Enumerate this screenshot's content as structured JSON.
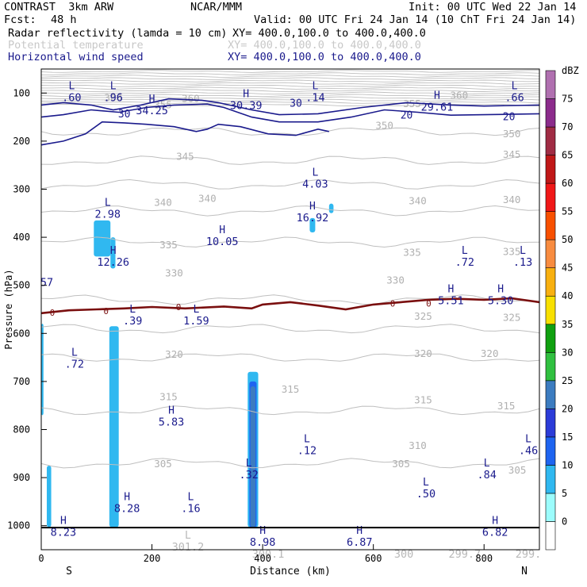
{
  "header": {
    "model": "CONTRAST  3km ARW",
    "org": "NCAR/MMM",
    "init": "Init: 00 UTC Wed 22 Jan 14",
    "fcst_label": "Fcst:",
    "fcst_value": "48 h",
    "valid": "Valid: 00 UTC Fri 24 Jan 14 (10 ChT Fri 24 Jan 14)"
  },
  "fields": [
    {
      "name": "Radar reflectivity (lamda = 10 cm)",
      "xy": "XY= 400.0,100.0 to 400.0,400.0",
      "style": "black"
    },
    {
      "name": "Potential temperature",
      "xy": "XY= 400.0,100.0 to 400.0,400.0",
      "style": "gray"
    },
    {
      "name": "Horizontal wind speed",
      "xy": "XY= 400.0,100.0 to 400.0,400.0",
      "style": "navy"
    }
  ],
  "chart_data": {
    "type": "cross-section",
    "xlabel": "Distance (km)",
    "ylabel": "Pressure (hPa)",
    "xlim": [
      0,
      900
    ],
    "ylim": [
      50,
      1050
    ],
    "xticks": [
      0,
      200,
      400,
      600,
      800
    ],
    "yticks": [
      100,
      200,
      300,
      400,
      500,
      600,
      700,
      800,
      900,
      1000
    ],
    "x_end_labels": {
      "left": "S",
      "right": "N"
    },
    "colorbar": {
      "unit": "dBZ",
      "levels": [
        0,
        5,
        10,
        15,
        20,
        25,
        30,
        35,
        40,
        45,
        50,
        55,
        60,
        65,
        70,
        75
      ],
      "colors": [
        "#ffffff",
        "#9cfcfc",
        "#30b8f0",
        "#1e64f0",
        "#2c3cd8",
        "#3c7cc0",
        "#30c040",
        "#10a010",
        "#f8e000",
        "#f8b010",
        "#f88c40",
        "#f85000",
        "#f01818",
        "#c01818",
        "#a02c44",
        "#8c2c8c",
        "#b070b0"
      ]
    },
    "theta_contours": [
      {
        "value": 350,
        "p": 180
      },
      {
        "value": 345,
        "p": 240
      },
      {
        "value": 340,
        "p": 290
      },
      {
        "value": 335,
        "p": 345
      },
      {
        "value": 330,
        "p": 410
      },
      {
        "value": 325,
        "p": 530
      },
      {
        "value": 320,
        "p": 590
      },
      {
        "value": 315,
        "p": 650
      },
      {
        "value": 310,
        "p": 760
      },
      {
        "value": 305,
        "p": 870
      }
    ],
    "theta_labels": [
      {
        "text": "350",
        "x": 620,
        "p": 168
      },
      {
        "text": "350",
        "x": 850,
        "p": 185
      },
      {
        "text": "345",
        "x": 260,
        "p": 232
      },
      {
        "text": "345",
        "x": 850,
        "p": 228
      },
      {
        "text": "340",
        "x": 220,
        "p": 328
      },
      {
        "text": "340",
        "x": 300,
        "p": 320
      },
      {
        "text": "340",
        "x": 680,
        "p": 325
      },
      {
        "text": "340",
        "x": 850,
        "p": 322
      },
      {
        "text": "335",
        "x": 230,
        "p": 416
      },
      {
        "text": "335",
        "x": 670,
        "p": 432
      },
      {
        "text": "335",
        "x": 850,
        "p": 430
      },
      {
        "text": "330",
        "x": 240,
        "p": 475
      },
      {
        "text": "330",
        "x": 640,
        "p": 490
      },
      {
        "text": "325",
        "x": 690,
        "p": 565
      },
      {
        "text": "325",
        "x": 850,
        "p": 567
      },
      {
        "text": "320",
        "x": 240,
        "p": 644
      },
      {
        "text": "320",
        "x": 690,
        "p": 642
      },
      {
        "text": "320",
        "x": 810,
        "p": 642
      },
      {
        "text": "315",
        "x": 230,
        "p": 732
      },
      {
        "text": "315",
        "x": 450,
        "p": 717
      },
      {
        "text": "315",
        "x": 690,
        "p": 739
      },
      {
        "text": "315",
        "x": 840,
        "p": 751
      },
      {
        "text": "310",
        "x": 680,
        "p": 834
      },
      {
        "text": "305",
        "x": 220,
        "p": 872
      },
      {
        "text": "305",
        "x": 650,
        "p": 872
      },
      {
        "text": "305",
        "x": 860,
        "p": 885
      },
      {
        "text": "360",
        "x": 130,
        "p": 110
      },
      {
        "text": "355",
        "x": 220,
        "p": 125
      },
      {
        "text": "360",
        "x": 270,
        "p": 112
      },
      {
        "text": "360",
        "x": 755,
        "p": 105
      },
      {
        "text": "355",
        "x": 670,
        "p": 123
      }
    ],
    "wind_contours": [
      {
        "value": 20,
        "points": [
          [
            0,
            150
          ],
          [
            40,
            145
          ],
          [
            90,
            135
          ],
          [
            140,
            140
          ],
          [
            190,
            130
          ],
          [
            240,
            125
          ],
          [
            300,
            123
          ],
          [
            330,
            130
          ],
          [
            380,
            150
          ],
          [
            430,
            160
          ],
          [
            500,
            160
          ],
          [
            560,
            150
          ],
          [
            620,
            135
          ],
          [
            680,
            140
          ],
          [
            740,
            146
          ],
          [
            800,
            145
          ],
          [
            900,
            143
          ]
        ]
      },
      {
        "value": 30,
        "points": [
          [
            0,
            125
          ],
          [
            40,
            120
          ],
          [
            90,
            125
          ],
          [
            130,
            135
          ],
          [
            180,
            125
          ],
          [
            230,
            112
          ],
          [
            290,
            115
          ],
          [
            320,
            120
          ],
          [
            380,
            135
          ],
          [
            430,
            145
          ],
          [
            500,
            143
          ],
          [
            580,
            130
          ],
          [
            660,
            120
          ],
          [
            740,
            125
          ],
          [
            800,
            127
          ],
          [
            900,
            125
          ]
        ]
      },
      {
        "value": 20,
        "points": [
          [
            0,
            208
          ],
          [
            40,
            200
          ],
          [
            80,
            185
          ],
          [
            110,
            160
          ],
          [
            150,
            162
          ],
          [
            190,
            165
          ],
          [
            240,
            170
          ],
          [
            280,
            180
          ],
          [
            300,
            175
          ],
          [
            320,
            165
          ],
          [
            360,
            170
          ],
          [
            410,
            185
          ],
          [
            460,
            188
          ],
          [
            500,
            175
          ],
          [
            520,
            180
          ]
        ]
      }
    ],
    "wind_contour_labels": [
      {
        "text": "30",
        "x": 150,
        "p": 142
      },
      {
        "text": "30",
        "x": 460,
        "p": 120
      },
      {
        "text": "20",
        "x": 660,
        "p": 145
      },
      {
        "text": "20",
        "x": 845,
        "p": 148
      }
    ],
    "zero_isotherm": [
      [
        0,
        558
      ],
      [
        50,
        552
      ],
      [
        100,
        550
      ],
      [
        150,
        548
      ],
      [
        200,
        545
      ],
      [
        260,
        548
      ],
      [
        330,
        544
      ],
      [
        380,
        548
      ],
      [
        400,
        540
      ],
      [
        450,
        535
      ],
      [
        500,
        542
      ],
      [
        550,
        550
      ],
      [
        600,
        540
      ],
      [
        650,
        535
      ],
      [
        700,
        530
      ],
      [
        750,
        528
      ],
      [
        800,
        530
      ],
      [
        850,
        527
      ],
      [
        900,
        535
      ]
    ],
    "zero_labels": [
      {
        "text": "0",
        "x": 20,
        "p": 557
      },
      {
        "text": "0",
        "x": 117,
        "p": 553
      },
      {
        "text": "0",
        "x": 248,
        "p": 545
      },
      {
        "text": "0",
        "x": 635,
        "p": 538
      },
      {
        "text": "0",
        "x": 700,
        "p": 538
      }
    ],
    "reflectivity_cells": [
      {
        "x0": 0,
        "x1": 4,
        "p0": 580,
        "p1": 770,
        "dbz": 5
      },
      {
        "x0": 95,
        "x1": 125,
        "p0": 365,
        "p1": 440,
        "dbz": 5
      },
      {
        "x0": 125,
        "x1": 134,
        "p0": 400,
        "p1": 465,
        "dbz": 5
      },
      {
        "x0": 123,
        "x1": 140,
        "p0": 585,
        "p1": 1003,
        "dbz": 5
      },
      {
        "x0": 10,
        "x1": 18,
        "p0": 875,
        "p1": 1003,
        "dbz": 5
      },
      {
        "x0": 485,
        "x1": 495,
        "p0": 360,
        "p1": 390,
        "dbz": 5
      },
      {
        "x0": 520,
        "x1": 528,
        "p0": 330,
        "p1": 350,
        "dbz": 5
      },
      {
        "x0": 373,
        "x1": 392,
        "p0": 680,
        "p1": 1003,
        "dbz": 5
      },
      {
        "x0": 376,
        "x1": 389,
        "p0": 700,
        "p1": 1003,
        "dbz": 10
      },
      {
        "x0": 378,
        "x1": 387,
        "p0": 710,
        "p1": 1003,
        "dbz": 20
      }
    ],
    "hl_labels": [
      {
        "letter": "L",
        "value": ".60",
        "x": 55,
        "p": 95,
        "color": "navy"
      },
      {
        "letter": "L",
        "value": ".96",
        "x": 130,
        "p": 95,
        "color": "navy"
      },
      {
        "letter": "L",
        "value": ".14",
        "x": 495,
        "p": 95,
        "color": "navy"
      },
      {
        "letter": "L",
        "value": ".66",
        "x": 855,
        "p": 95,
        "color": "navy"
      },
      {
        "letter": "H",
        "value": "34.25",
        "x": 200,
        "p": 123,
        "color": "navy"
      },
      {
        "letter": "H",
        "value": "30.39",
        "x": 370,
        "p": 112,
        "color": "navy"
      },
      {
        "letter": "H",
        "value": "29.61",
        "x": 715,
        "p": 115,
        "color": "navy"
      },
      {
        "letter": "L",
        "value": "4.03",
        "x": 495,
        "p": 275,
        "color": "navy"
      },
      {
        "letter": "L",
        "value": "2.98",
        "x": 120,
        "p": 338,
        "color": "navy"
      },
      {
        "letter": "H",
        "value": "16.92",
        "x": 490,
        "p": 345,
        "color": "navy"
      },
      {
        "letter": "H",
        "value": "10.05",
        "x": 327,
        "p": 395,
        "color": "navy"
      },
      {
        "letter": "H",
        "value": "12.26",
        "x": 130,
        "p": 438,
        "color": "navy"
      },
      {
        "letter": "L",
        "value": ".72",
        "x": 765,
        "p": 438,
        "color": "navy"
      },
      {
        "letter": "L",
        "value": ".13",
        "x": 870,
        "p": 438,
        "color": "navy"
      },
      {
        "letter": "",
        "value": "57",
        "x": 10,
        "p": 480,
        "color": "navy"
      },
      {
        "letter": "H",
        "value": "5.51",
        "x": 740,
        "p": 518,
        "color": "navy"
      },
      {
        "letter": "H",
        "value": "5.30",
        "x": 830,
        "p": 518,
        "color": "navy"
      },
      {
        "letter": "L",
        "value": ".39",
        "x": 165,
        "p": 560,
        "color": "navy"
      },
      {
        "letter": "L",
        "value": "1.59",
        "x": 280,
        "p": 560,
        "color": "navy"
      },
      {
        "letter": "L",
        "value": ".72",
        "x": 60,
        "p": 650,
        "color": "navy"
      },
      {
        "letter": "H",
        "value": "5.83",
        "x": 235,
        "p": 770,
        "color": "navy"
      },
      {
        "letter": "L",
        "value": ".12",
        "x": 480,
        "p": 830,
        "color": "navy"
      },
      {
        "letter": "L",
        "value": ".46",
        "x": 880,
        "p": 830,
        "color": "navy"
      },
      {
        "letter": "L",
        "value": ".32",
        "x": 375,
        "p": 880,
        "color": "navy"
      },
      {
        "letter": "L",
        "value": ".84",
        "x": 805,
        "p": 880,
        "color": "navy"
      },
      {
        "letter": "L",
        "value": ".50",
        "x": 695,
        "p": 920,
        "color": "navy"
      },
      {
        "letter": "H",
        "value": "8.28",
        "x": 155,
        "p": 950,
        "color": "navy"
      },
      {
        "letter": "L",
        "value": ".16",
        "x": 270,
        "p": 950,
        "color": "navy"
      },
      {
        "letter": "H",
        "value": "8.23",
        "x": 40,
        "p": 1000,
        "color": "navy"
      },
      {
        "letter": "H",
        "value": "8.98",
        "x": 400,
        "p": 1020,
        "color": "navy"
      },
      {
        "letter": "H",
        "value": "6.87",
        "x": 575,
        "p": 1020,
        "color": "navy"
      },
      {
        "letter": "H",
        "value": "6.82",
        "x": 820,
        "p": 1000,
        "color": "navy"
      },
      {
        "letter": "L",
        "value": "301.2",
        "x": 265,
        "p": 1030,
        "color": "gray"
      },
      {
        "letter": "",
        "value": "300.1",
        "x": 410,
        "p": 1045,
        "color": "gray"
      },
      {
        "letter": "",
        "value": "300",
        "x": 655,
        "p": 1045,
        "color": "gray"
      },
      {
        "letter": "",
        "value": "299.7",
        "x": 765,
        "p": 1045,
        "color": "gray"
      },
      {
        "letter": "",
        "value": "299.",
        "x": 880,
        "p": 1045,
        "color": "gray"
      }
    ]
  },
  "colors": {
    "navy": "#1a1a8c",
    "gray": "#bfbfbf",
    "dark_red": "#7a0f0f"
  }
}
